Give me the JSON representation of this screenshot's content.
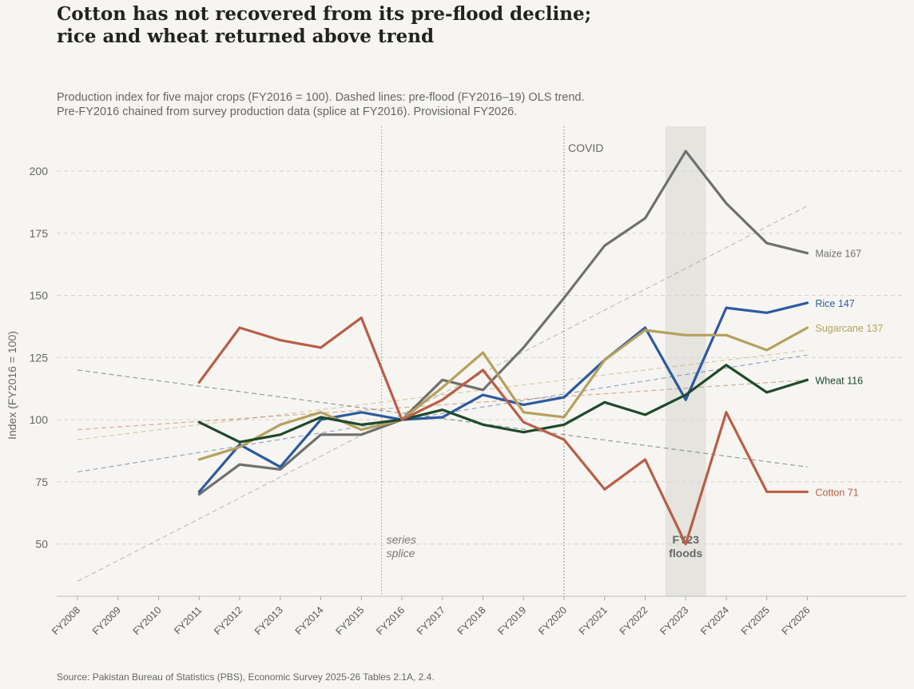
{
  "title_lines": [
    "Cotton has not recovered from its pre-flood decline;",
    "rice and wheat returned above trend"
  ],
  "subtitle_lines": [
    "Production index for five major crops (FY2016 = 100). Dashed lines: pre-flood (FY2016–19) OLS trend.",
    "Pre-FY2016 chained from survey production data (splice at FY2016). Provisional FY2026."
  ],
  "source": "Source: Pakistan Bureau of Statistics (PBS), Economic Survey 2025-26 Tables 2.1A, 2.4.",
  "chart_data": {
    "type": "line",
    "ylabel": "Index (FY2016 = 100)",
    "ylim": [
      29,
      218
    ],
    "yticks": [
      50,
      75,
      100,
      125,
      150,
      175,
      200
    ],
    "categories": [
      "FY2008",
      "FY2009",
      "FY2010",
      "FY2011",
      "FY2012",
      "FY2013",
      "FY2014",
      "FY2015",
      "FY2016",
      "FY2017",
      "FY2018",
      "FY2019",
      "FY2020",
      "FY2021",
      "FY2022",
      "FY2023",
      "FY2024",
      "FY2025",
      "FY2026"
    ],
    "grid": "horizontal dashed",
    "series": [
      {
        "name": "Maize",
        "end_label": "Maize 167",
        "color": "#707070",
        "values": [
          null,
          null,
          null,
          70,
          82,
          80,
          94,
          94,
          100,
          116,
          112,
          129,
          149,
          170,
          181,
          208,
          187,
          171,
          167
        ]
      },
      {
        "name": "Rice",
        "end_label": "Rice 147",
        "color": "#2c5aa0",
        "values": [
          null,
          null,
          null,
          71,
          90,
          81,
          100,
          103,
          100,
          101,
          110,
          106,
          109,
          124,
          137,
          108,
          145,
          143,
          147
        ]
      },
      {
        "name": "Sugarcane",
        "end_label": "Sugarcane 137",
        "color": "#b5a05e",
        "values": [
          null,
          null,
          null,
          84,
          89,
          98,
          103,
          96,
          100,
          113,
          127,
          103,
          101,
          124,
          136,
          134,
          134,
          128,
          137
        ]
      },
      {
        "name": "Wheat",
        "end_label": "Wheat 116",
        "color": "#1d4a2a",
        "values": [
          null,
          null,
          null,
          99,
          91,
          94,
          101,
          98,
          100,
          104,
          98,
          95,
          98,
          107,
          102,
          110,
          122,
          111,
          116
        ]
      },
      {
        "name": "Cotton",
        "end_label": "Cotton 71",
        "color": "#b85e48",
        "values": [
          null,
          null,
          null,
          115,
          137,
          132,
          129,
          141,
          100,
          108,
          120,
          99,
          92,
          72,
          84,
          50,
          103,
          71,
          71
        ]
      }
    ],
    "trend_lines": [
      {
        "name": "Maize",
        "color": "#8a8a8a",
        "x": [
          "FY2008",
          "FY2026"
        ],
        "values": [
          35,
          186
        ]
      },
      {
        "name": "Rice",
        "color": "#2c5aa0",
        "x": [
          "FY2008",
          "FY2026"
        ],
        "values": [
          79,
          126
        ]
      },
      {
        "name": "Sugarcane",
        "color": "#b5a05e",
        "x": [
          "FY2008",
          "FY2026"
        ],
        "values": [
          92,
          128
        ]
      },
      {
        "name": "Wheat",
        "color": "#2f4a35",
        "x": [
          "FY2008",
          "FY2026"
        ],
        "values": [
          120,
          81
        ]
      },
      {
        "name": "Cotton",
        "color": "#b85e48",
        "x": [
          "FY2008",
          "FY2026"
        ],
        "values": [
          96,
          116
        ]
      }
    ],
    "annotations": {
      "splice": {
        "x": 15.5,
        "line1": "series",
        "line2": "splice"
      },
      "covid": {
        "x": "FY2020",
        "text": "COVID"
      },
      "floods": {
        "x_range": [
          "FY2022.5",
          "FY2023.5"
        ],
        "line1": "FY23",
        "line2": "floods"
      }
    }
  }
}
